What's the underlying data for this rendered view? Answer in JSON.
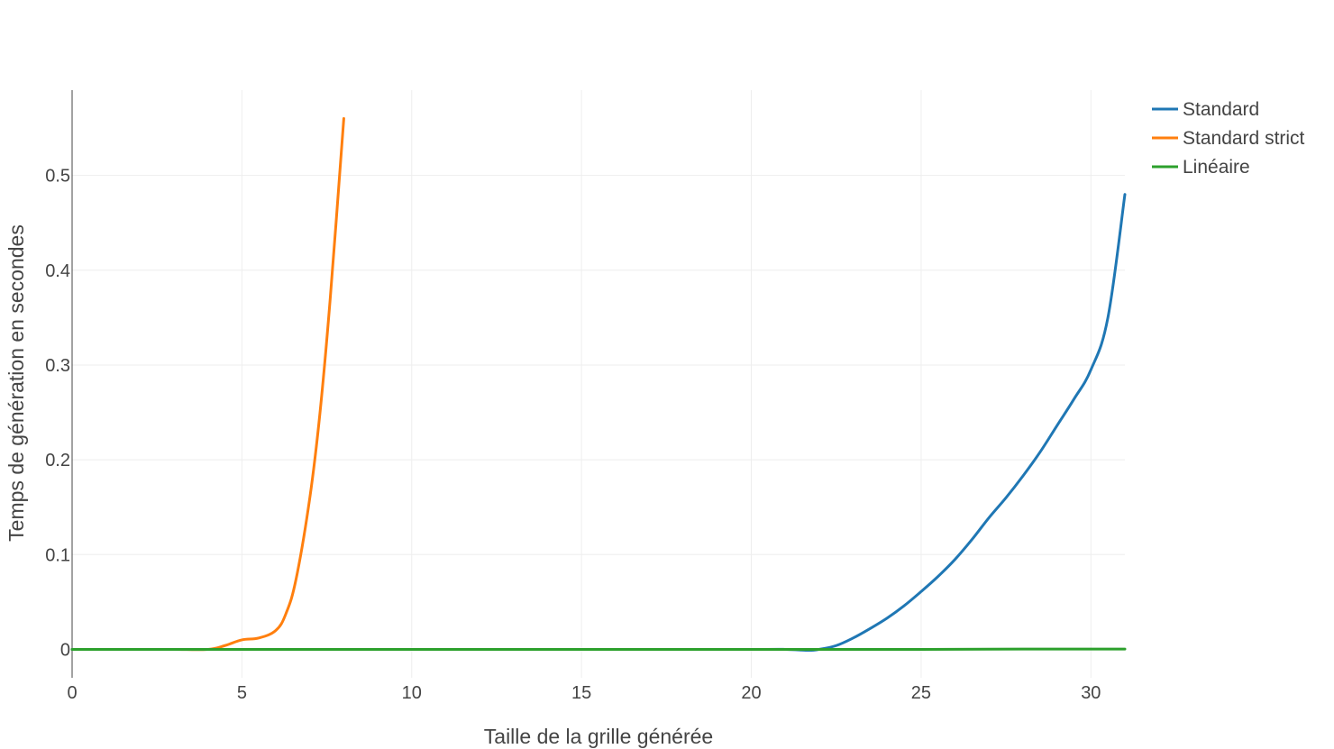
{
  "chart_data": {
    "type": "line",
    "title": "",
    "xlabel": "Taille de la grille générée",
    "ylabel": "Temps de génération en secondes",
    "xlim": [
      0,
      31
    ],
    "ylim": [
      -0.03,
      0.59
    ],
    "xticks": [
      0,
      5,
      10,
      15,
      20,
      25,
      30
    ],
    "xtick_labels": [
      "0",
      "5",
      "10",
      "15",
      "20",
      "25",
      "30"
    ],
    "yticks": [
      0,
      0.1,
      0.2,
      0.3,
      0.4,
      0.5
    ],
    "ytick_labels": [
      "0",
      "0.1",
      "0.2",
      "0.3",
      "0.4",
      "0.5"
    ],
    "grid": true,
    "legend_position": "top-right",
    "series": [
      {
        "name": "Standard",
        "color": "#1f77b4",
        "x": [
          0,
          5,
          10,
          15,
          20,
          21,
          21.7,
          22,
          22.5,
          23,
          23.5,
          24,
          24.5,
          25,
          25.5,
          26,
          26.5,
          27,
          27.5,
          28,
          28.5,
          29,
          29.5,
          30,
          30.5,
          31
        ],
        "y": [
          0,
          0,
          0,
          0,
          0,
          0,
          -0.001,
          0,
          0.004,
          0.012,
          0.022,
          0.033,
          0.046,
          0.061,
          0.077,
          0.095,
          0.116,
          0.139,
          0.16,
          0.183,
          0.208,
          0.236,
          0.264,
          0.295,
          0.35,
          0.48
        ]
      },
      {
        "name": "Standard strict",
        "color": "#ff7f0e",
        "x": [
          0,
          1,
          2,
          3,
          4,
          4.5,
          5,
          5.5,
          6,
          6.3,
          6.6,
          7,
          7.3,
          7.6,
          8
        ],
        "y": [
          0,
          0,
          0,
          0,
          0,
          0.004,
          0.01,
          0.012,
          0.02,
          0.038,
          0.075,
          0.16,
          0.25,
          0.37,
          0.56
        ]
      },
      {
        "name": "Linéaire",
        "color": "#2ca02c",
        "x": [
          0,
          5,
          10,
          15,
          20,
          25,
          28,
          31
        ],
        "y": [
          0,
          0,
          0,
          0,
          0,
          0,
          0.0003,
          0.0003
        ]
      }
    ]
  }
}
